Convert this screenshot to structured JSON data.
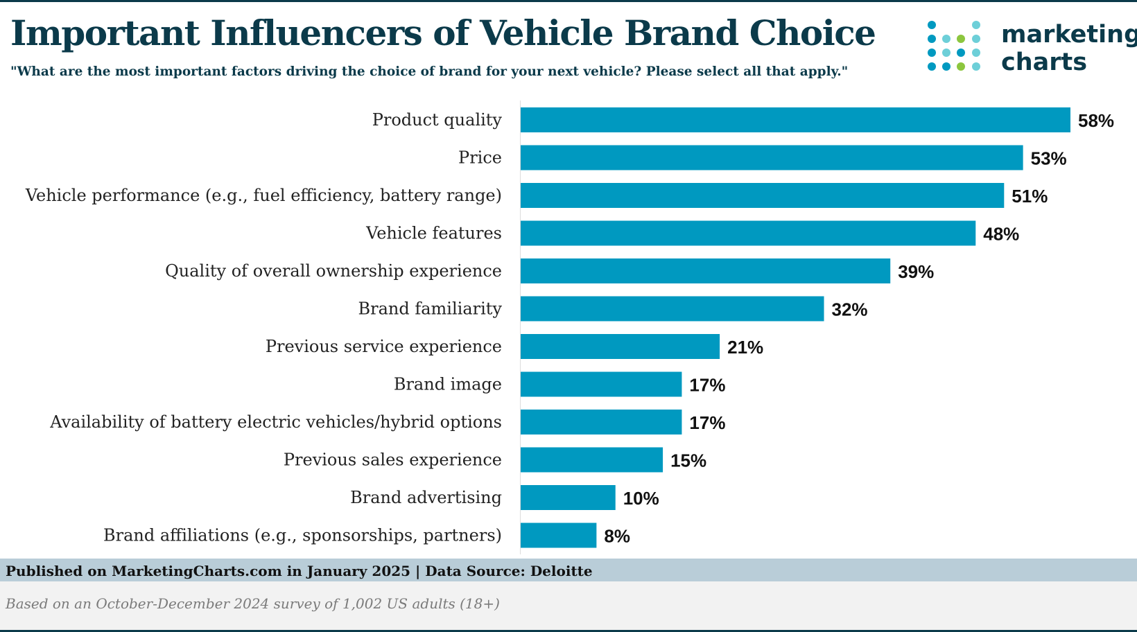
{
  "header": {
    "title": "Important Influencers of Vehicle Brand Choice",
    "subtitle": "\"What are the most important factors driving the choice of brand for your next vehicle? Please select all that apply.\""
  },
  "logo": {
    "line1": "marketing",
    "line2": "charts"
  },
  "chart_data": {
    "type": "bar",
    "orientation": "horizontal",
    "categories": [
      "Product quality",
      "Price",
      "Vehicle performance (e.g., fuel efficiency, battery range)",
      "Vehicle features",
      "Quality of overall ownership experience",
      "Brand familiarity",
      "Previous service experience",
      "Brand image",
      "Availability of battery electric vehicles/hybrid options",
      "Previous sales experience",
      "Brand advertising",
      "Brand affiliations (e.g., sponsorships, partners)"
    ],
    "values": [
      58,
      53,
      51,
      48,
      39,
      32,
      21,
      17,
      17,
      15,
      10,
      8
    ],
    "value_labels": [
      "58%",
      "53%",
      "51%",
      "48%",
      "39%",
      "32%",
      "21%",
      "17%",
      "17%",
      "15%",
      "10%",
      "8%"
    ],
    "unit": "%",
    "xlim": [
      0,
      58
    ],
    "bar_color": "#0099c0",
    "grid": false,
    "legend": "none"
  },
  "footer": {
    "source": "Published on MarketingCharts.com in January 2025 | Data Source: Deloitte",
    "note": "Based on an October-December 2024 survey of 1,002 US adults (18+)"
  },
  "colors": {
    "title": "#0b3a4a",
    "bar": "#0099c0",
    "footer_band": "#b9cdd8",
    "note_band": "#f2f2f2",
    "logo_dots": [
      "#0099c0",
      "#6dcfd8",
      "#8cc63e"
    ]
  }
}
